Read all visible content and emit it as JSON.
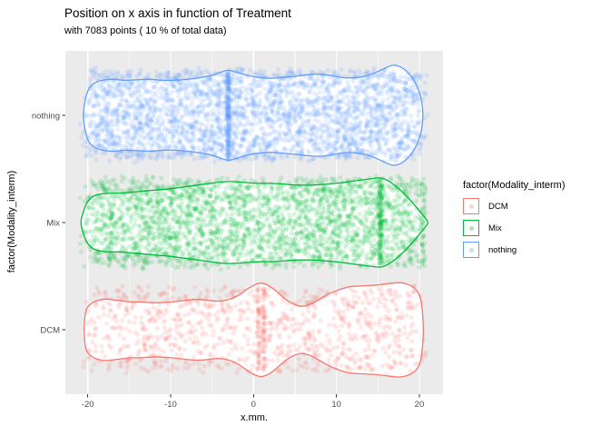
{
  "chart_data": {
    "type": "scatter",
    "subtype": "violin_jitter",
    "title": "Position on x axis in function of Treatment",
    "subtitle": "with 7083 points ( 10 % of total data)",
    "xlabel": "x.mm.",
    "ylabel": "factor(Modality_interm)",
    "xlim": [
      -22.7,
      22.85
    ],
    "x_ticks": [
      -20,
      -10,
      0,
      10,
      20
    ],
    "x_minor_ticks": [
      -15,
      -5,
      5,
      15
    ],
    "y_categories_top_to_bottom": [
      "nothing",
      "Mix",
      "DCM"
    ],
    "total_points": 7083,
    "grid": true,
    "colors": {
      "panel_bg": "#EBEBEB",
      "grid": "#FFFFFF",
      "tick_text": "#4D4D4D",
      "tick_mark": "#333333"
    },
    "legend": {
      "title": "factor(Modality_interm)",
      "position": "right",
      "entries": [
        {
          "label": "DCM",
          "color": "#F8766D"
        },
        {
          "label": "Mix",
          "color": "#00BA38"
        },
        {
          "label": "nothing",
          "color": "#619CFF"
        }
      ]
    },
    "series": [
      {
        "name": "nothing",
        "color": "#619CFF",
        "n_points": 3100,
        "dense_columns": [
          {
            "x": -3.05,
            "n": 170,
            "sd": 0.1
          }
        ],
        "violin": [
          [
            -20.3,
            0.3
          ],
          [
            -19.9,
            0.52
          ],
          [
            -19.2,
            0.64
          ],
          [
            -18.2,
            0.7
          ],
          [
            -17,
            0.72
          ],
          [
            -15.5,
            0.7
          ],
          [
            -14,
            0.71
          ],
          [
            -12.5,
            0.72
          ],
          [
            -11,
            0.7
          ],
          [
            -9.5,
            0.7
          ],
          [
            -8,
            0.72
          ],
          [
            -6.5,
            0.75
          ],
          [
            -5,
            0.8
          ],
          [
            -3.8,
            0.87
          ],
          [
            -3,
            0.9
          ],
          [
            -2,
            0.86
          ],
          [
            -0.8,
            0.8
          ],
          [
            0.5,
            0.76
          ],
          [
            2,
            0.74
          ],
          [
            3.5,
            0.76
          ],
          [
            5,
            0.78
          ],
          [
            6.5,
            0.81
          ],
          [
            8,
            0.82
          ],
          [
            9.5,
            0.79
          ],
          [
            11,
            0.75
          ],
          [
            12.2,
            0.75
          ],
          [
            13.4,
            0.78
          ],
          [
            14.5,
            0.84
          ],
          [
            15.6,
            0.92
          ],
          [
            16.8,
            1.0
          ],
          [
            17.8,
            0.96
          ],
          [
            18.8,
            0.82
          ],
          [
            19.6,
            0.62
          ],
          [
            20.2,
            0.34
          ]
        ]
      },
      {
        "name": "Mix",
        "color": "#00BA38",
        "n_points": 2900,
        "dense_columns": [
          {
            "x": 15.3,
            "n": 130,
            "sd": 0.12
          },
          {
            "x": 20.5,
            "n": 40,
            "sd": 0.15
          }
        ],
        "violin": [
          [
            -20.6,
            0.2
          ],
          [
            -20.1,
            0.44
          ],
          [
            -19.4,
            0.58
          ],
          [
            -18.4,
            0.64
          ],
          [
            -17.2,
            0.66
          ],
          [
            -16,
            0.66
          ],
          [
            -14.8,
            0.68
          ],
          [
            -13.6,
            0.7
          ],
          [
            -12.4,
            0.72
          ],
          [
            -11.2,
            0.74
          ],
          [
            -10,
            0.76
          ],
          [
            -8.8,
            0.79
          ],
          [
            -7.6,
            0.82
          ],
          [
            -6.4,
            0.85
          ],
          [
            -5.2,
            0.88
          ],
          [
            -4,
            0.91
          ],
          [
            -2.8,
            0.92
          ],
          [
            -1.6,
            0.91
          ],
          [
            -0.4,
            0.89
          ],
          [
            0.8,
            0.88
          ],
          [
            2,
            0.88
          ],
          [
            3.2,
            0.87
          ],
          [
            4.4,
            0.85
          ],
          [
            5.6,
            0.84
          ],
          [
            6.8,
            0.84
          ],
          [
            8,
            0.85
          ],
          [
            9.2,
            0.87
          ],
          [
            10.4,
            0.89
          ],
          [
            11.6,
            0.92
          ],
          [
            12.8,
            0.95
          ],
          [
            14,
            0.98
          ],
          [
            15.3,
            1.0
          ],
          [
            16.2,
            0.94
          ],
          [
            17.2,
            0.81
          ],
          [
            18.2,
            0.64
          ],
          [
            19.2,
            0.44
          ],
          [
            20.1,
            0.24
          ],
          [
            20.8,
            0.08
          ]
        ]
      },
      {
        "name": "DCM",
        "color": "#F8766D",
        "n_points": 1083,
        "dense_columns": [
          {
            "x": 0.6,
            "n": 55,
            "sd": 0.08
          },
          {
            "x": 1.25,
            "n": 55,
            "sd": 0.08
          }
        ],
        "violin": [
          [
            -20.2,
            0.4
          ],
          [
            -19.6,
            0.54
          ],
          [
            -18.8,
            0.61
          ],
          [
            -17.8,
            0.64
          ],
          [
            -16.8,
            0.62
          ],
          [
            -15.8,
            0.6
          ],
          [
            -14.8,
            0.58
          ],
          [
            -13.8,
            0.58
          ],
          [
            -12.8,
            0.57
          ],
          [
            -11.8,
            0.56
          ],
          [
            -10.8,
            0.57
          ],
          [
            -9.8,
            0.58
          ],
          [
            -8.8,
            0.6
          ],
          [
            -7.8,
            0.62
          ],
          [
            -6.8,
            0.63
          ],
          [
            -5.8,
            0.62
          ],
          [
            -4.8,
            0.6
          ],
          [
            -3.8,
            0.6
          ],
          [
            -2.8,
            0.64
          ],
          [
            -1.8,
            0.72
          ],
          [
            -0.8,
            0.84
          ],
          [
            0.2,
            0.94
          ],
          [
            1,
            0.97
          ],
          [
            1.9,
            0.91
          ],
          [
            2.9,
            0.78
          ],
          [
            3.9,
            0.63
          ],
          [
            4.9,
            0.53
          ],
          [
            5.8,
            0.49
          ],
          [
            6.8,
            0.53
          ],
          [
            7.8,
            0.62
          ],
          [
            8.8,
            0.72
          ],
          [
            9.8,
            0.8
          ],
          [
            10.8,
            0.86
          ],
          [
            11.8,
            0.9
          ],
          [
            12.8,
            0.91
          ],
          [
            13.8,
            0.92
          ],
          [
            14.8,
            0.93
          ],
          [
            15.8,
            0.95
          ],
          [
            16.8,
            0.97
          ],
          [
            17.7,
            0.98
          ],
          [
            18.5,
            0.95
          ],
          [
            19.3,
            0.88
          ],
          [
            19.9,
            0.76
          ],
          [
            20.25,
            0.55
          ]
        ]
      }
    ]
  }
}
